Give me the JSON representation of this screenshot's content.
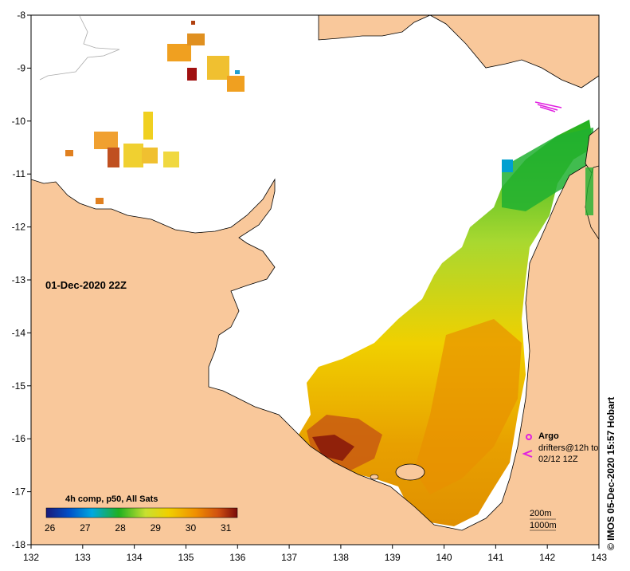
{
  "map": {
    "lon_range": [
      132,
      143
    ],
    "lat_range": [
      -18,
      -8
    ],
    "x_ticks": [
      "132",
      "133",
      "134",
      "135",
      "136",
      "137",
      "138",
      "139",
      "140",
      "141",
      "142",
      "143"
    ],
    "y_ticks": [
      "-8",
      "-9",
      "-10",
      "-11",
      "-12",
      "-13",
      "-14",
      "-15",
      "-16",
      "-17",
      "-18"
    ],
    "land_color": "#f9c89b",
    "nodata_color": "#ffffff",
    "coast_color": "#000000"
  },
  "labels": {
    "date": "01-Dec-2020 22Z",
    "credit": "© IMOS 05-Dec-2020 15:57 Hobart"
  },
  "legend": {
    "title": "4h comp, p50, All Sats",
    "values": [
      "26",
      "27",
      "28",
      "29",
      "30",
      "31"
    ],
    "colors": [
      "#1a1a7a",
      "#0050c8",
      "#00a8e0",
      "#20b020",
      "#c8e030",
      "#f0d000",
      "#f09000",
      "#d05010",
      "#7a0a0a"
    ]
  },
  "overlay": {
    "argo_label": "Argo",
    "drifters_label": "drifters@12h to 02/12 12Z",
    "depth_200": "200m",
    "depth_1000": "1000m",
    "marker_color": "#e020e0"
  }
}
